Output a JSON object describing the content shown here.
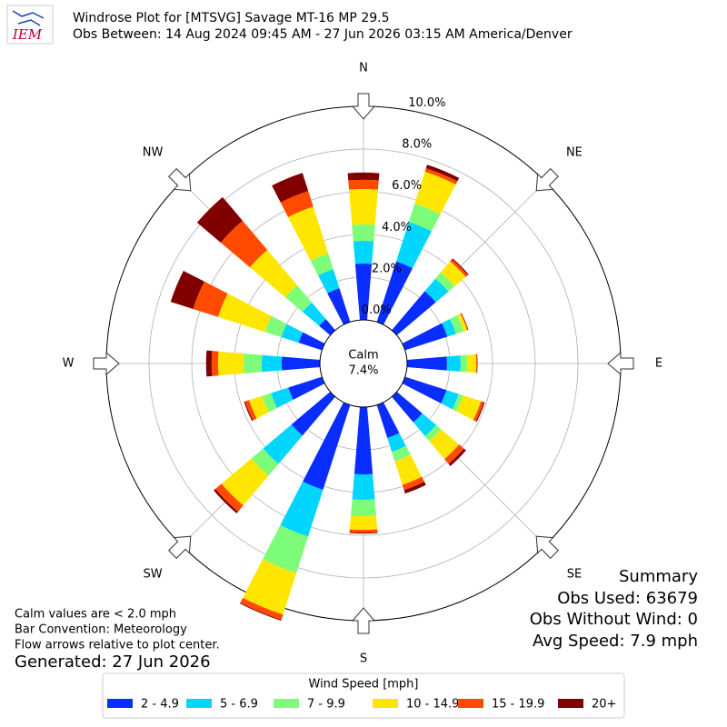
{
  "chart_data": {
    "type": "windrose",
    "title": "Windrose Plot for [MTSVG] Savage MT-16 MP 29.5",
    "subtitle": "Obs Between: 14 Aug 2024 09:45 AM - 27 Jun 2026 03:15 AM America/Denver",
    "logo": "IEM",
    "categories": [
      "N",
      null,
      "NE",
      null,
      "E",
      null,
      "SE",
      null,
      "S",
      null,
      "SW",
      null,
      "W",
      null,
      "NW",
      null
    ],
    "rlim": [
      0,
      10
    ],
    "rticks": [
      {
        "value": 0,
        "label": "0.0%"
      },
      {
        "value": 2,
        "label": "2.0%"
      },
      {
        "value": 4,
        "label": "4.0%"
      },
      {
        "value": 6,
        "label": "6.0%"
      },
      {
        "value": 8,
        "label": "8.0%"
      },
      {
        "value": 10,
        "label": "10.0%"
      }
    ],
    "calm_label": "Calm",
    "calm_value": 7.4,
    "calm_value_label": "7.4%",
    "legend_title": "Wind Speed [mph]",
    "series": [
      {
        "name": "2 - 4.9",
        "color": "#0a2dff",
        "values": [
          2.64,
          2.98,
          2.4,
          2.08,
          1.87,
          2.04,
          1.57,
          1.62,
          3.15,
          4.17,
          2.38,
          1.66,
          1.79,
          1.15,
          0.68,
          1.66
        ]
      },
      {
        "name": "5 - 6.9",
        "color": "#00d6ff",
        "values": [
          1.06,
          1.94,
          0.77,
          0.43,
          0.64,
          0.6,
          0.85,
          0.68,
          1.19,
          2.3,
          1.74,
          0.85,
          0.94,
          0.85,
          1.02,
          0.94
        ]
      },
      {
        "name": "7 - 9.9",
        "color": "#7dfc7a",
        "values": [
          0.77,
          0.9,
          0.38,
          0.38,
          0.3,
          0.21,
          0.3,
          0.47,
          0.77,
          1.79,
          0.72,
          0.43,
          0.85,
          0.81,
          1.06,
          0.77
        ]
      },
      {
        "name": "10 - 14.9",
        "color": "#ffe600",
        "values": [
          1.66,
          1.57,
          0.68,
          0.17,
          0.43,
          0.89,
          1.1,
          1.15,
          0.64,
          2.04,
          1.83,
          0.64,
          1.19,
          2.3,
          2.17,
          2.3
        ]
      },
      {
        "name": "15 - 19.9",
        "color": "#ff4a00",
        "values": [
          0.43,
          0.17,
          0.13,
          0.04,
          0.04,
          0.13,
          0.3,
          0.26,
          0.13,
          0.26,
          0.38,
          0.2,
          0.3,
          1.23,
          1.79,
          0.77
        ]
      },
      {
        "name": "20+",
        "color": "#800000",
        "values": [
          0.34,
          0.17,
          0.05,
          0.02,
          0.02,
          0.05,
          0.13,
          0.17,
          0.04,
          0.04,
          0.1,
          0.05,
          0.26,
          1.1,
          1.45,
          0.89
        ]
      }
    ],
    "notes": [
      "Calm values are < 2.0 mph",
      "Bar Convention: Meteorology",
      "Flow arrows relative to plot center."
    ],
    "generated": "Generated: 27 Jun 2026",
    "summary": [
      "Summary",
      "Obs Used: 63679",
      "Obs Without Wind: 0",
      "Avg Speed: 7.9 mph"
    ]
  }
}
